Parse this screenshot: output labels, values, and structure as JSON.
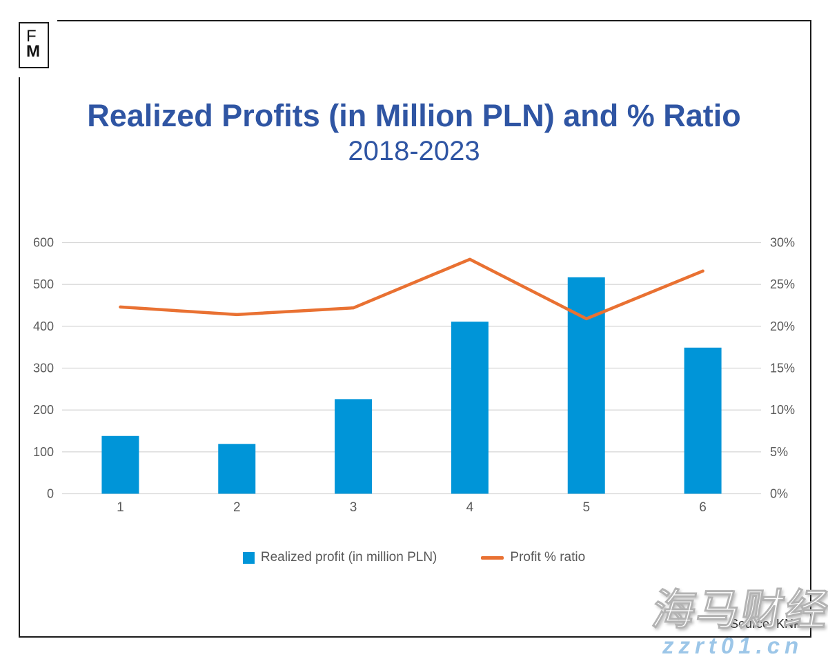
{
  "logo": {
    "letter_top": "F",
    "letter_bottom": "M"
  },
  "title": {
    "main": "Realized Profits (in Million PLN) and % Ratio",
    "sub": "2018-2023"
  },
  "colors": {
    "title": "#2F55A3",
    "bar": "#0095D8",
    "line": "#E97132",
    "grid": "#D9D9D9",
    "axis_text": "#595959",
    "watermark_url": "#9CC6E8"
  },
  "chart_data": {
    "type": "bar",
    "combo": "bar + line, dual axis",
    "title": "Realized Profits (in Million PLN) and % Ratio 2018-2023",
    "categories": [
      "1",
      "2",
      "3",
      "4",
      "5",
      "6"
    ],
    "series": [
      {
        "name": "Realized profit (in million PLN)",
        "type": "bar",
        "axis": "left",
        "color": "#0095D8",
        "values": [
          138,
          119,
          226,
          411,
          517,
          349
        ]
      },
      {
        "name": "Profit % ratio",
        "type": "line",
        "axis": "right",
        "color": "#E97132",
        "unit": "%",
        "values": [
          22.3,
          21.4,
          22.2,
          28,
          20.9,
          26.6
        ]
      }
    ],
    "left_axis": {
      "min": 0,
      "max": 600,
      "ticks": [
        "0",
        "100",
        "200",
        "300",
        "400",
        "500",
        "600"
      ]
    },
    "right_axis": {
      "min": 0,
      "max": 30,
      "ticks": [
        "0%",
        "5%",
        "10%",
        "15%",
        "20%",
        "25%",
        "30%"
      ]
    },
    "grid": "horizontal only",
    "legend_position": "bottom"
  },
  "source": {
    "label": "Source: KNF"
  },
  "watermark": {
    "cjk": "海马财经",
    "url": "zzrt01.cn"
  }
}
